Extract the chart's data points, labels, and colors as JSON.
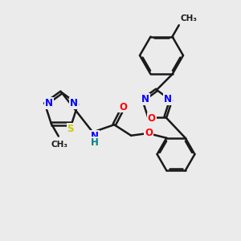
{
  "background_color": "#ebebeb",
  "bond_color": "#1a1a1a",
  "bond_width": 1.8,
  "atom_colors": {
    "N": "#0000ff",
    "O": "#ff0000",
    "S": "#cccc00",
    "C": "#1a1a1a",
    "H": "#008080"
  },
  "font_size": 8.5,
  "fig_size": [
    3.0,
    3.0
  ],
  "dpi": 100,
  "xlim": [
    0,
    10
  ],
  "ylim": [
    0,
    10
  ]
}
